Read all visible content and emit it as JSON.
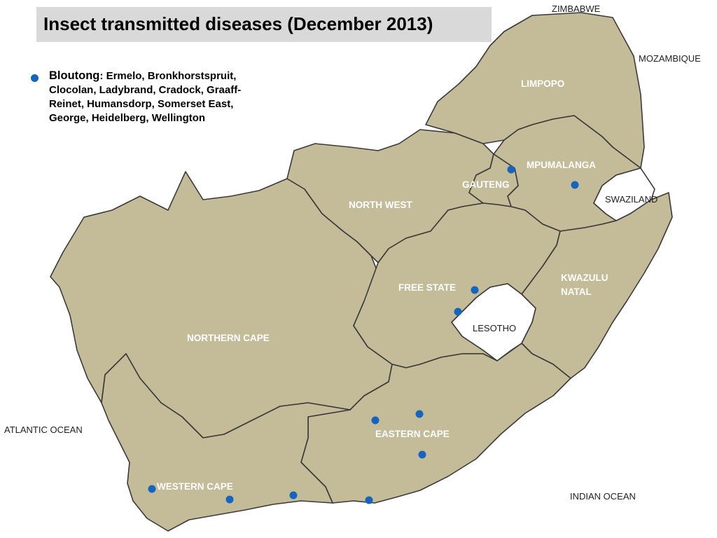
{
  "title": "Insect transmitted diseases (December 2013)",
  "legend": {
    "name": "Bloutong",
    "separator": ":",
    "towns": "Ermelo, Bronkhorstspruit, Clocolan, Ladybrand, Cradock, Graaff-Reinet, Humansdorp, Somerset East, George, Heidelberg, Wellington",
    "dot_color": "#1565c0"
  },
  "provinces": {
    "limpopo": "LIMPOPO",
    "mpumalanga": "MPUMALANGA",
    "gauteng": "GAUTENG",
    "north_west": "NORTH WEST",
    "free_state": "FREE STATE",
    "kwazulu_natal_line1": "KWAZULU",
    "kwazulu_natal_line2": "NATAL",
    "northern_cape": "NORTHERN CAPE",
    "eastern_cape": "EASTERN CAPE",
    "western_cape": "WESTERN CAPE"
  },
  "neighbours": {
    "zimbabwe": "ZIMBABWE",
    "mozambique": "MOZAMBIQUE",
    "swaziland": "SWAZILAND",
    "lesotho": "LESOTHO",
    "atlantic": "ATLANTIC OCEAN",
    "indian": "INDIAN OCEAN"
  },
  "colors": {
    "land": "#c4bb98",
    "border": "#3a3a3a",
    "marker": "#1565c0",
    "title_bg": "#d9d9d9"
  }
}
